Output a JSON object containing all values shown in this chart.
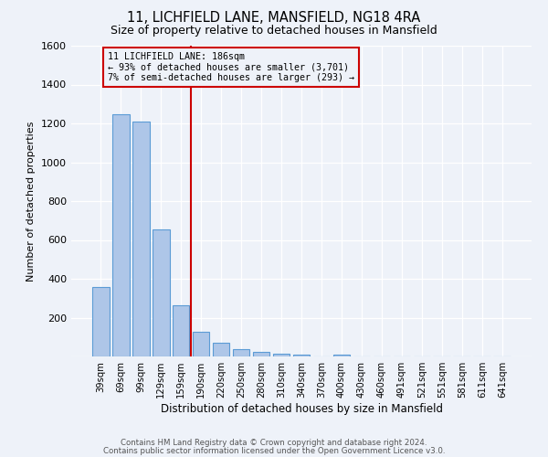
{
  "title_line1": "11, LICHFIELD LANE, MANSFIELD, NG18 4RA",
  "title_line2": "Size of property relative to detached houses in Mansfield",
  "xlabel": "Distribution of detached houses by size in Mansfield",
  "ylabel": "Number of detached properties",
  "footnote_line1": "Contains HM Land Registry data © Crown copyright and database right 2024.",
  "footnote_line2": "Contains public sector information licensed under the Open Government Licence v3.0.",
  "bar_labels": [
    "39sqm",
    "69sqm",
    "99sqm",
    "129sqm",
    "159sqm",
    "190sqm",
    "220sqm",
    "250sqm",
    "280sqm",
    "310sqm",
    "340sqm",
    "370sqm",
    "400sqm",
    "430sqm",
    "460sqm",
    "491sqm",
    "521sqm",
    "551sqm",
    "581sqm",
    "611sqm",
    "641sqm"
  ],
  "bar_values": [
    360,
    1245,
    1210,
    655,
    265,
    125,
    70,
    38,
    22,
    15,
    10,
    0,
    8,
    0,
    0,
    0,
    0,
    0,
    0,
    0,
    0
  ],
  "property_label": "11 LICHFIELD LANE: 186sqm",
  "annotation_line1": "← 93% of detached houses are smaller (3,701)",
  "annotation_line2": "7% of semi-detached houses are larger (293) →",
  "bar_color": "#aec6e8",
  "bar_edge_color": "#5b9bd5",
  "vline_color": "#cc0000",
  "annotation_box_edge_color": "#cc0000",
  "background_color": "#eef2f9",
  "ylim": [
    0,
    1600
  ],
  "yticks": [
    0,
    200,
    400,
    600,
    800,
    1000,
    1200,
    1400,
    1600
  ],
  "vline_x": 4.5
}
